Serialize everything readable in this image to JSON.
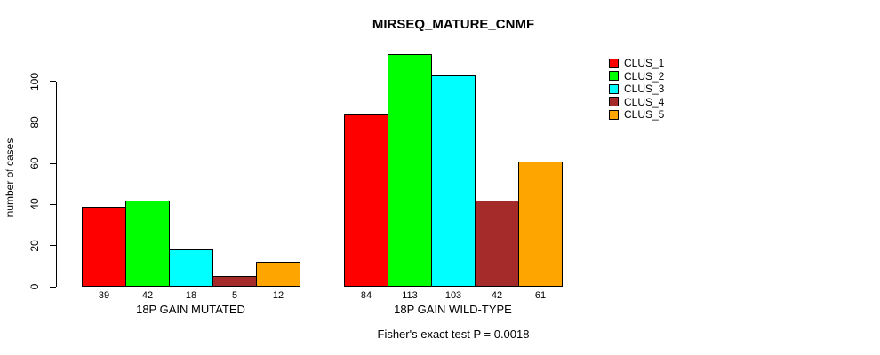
{
  "chart_data": {
    "type": "bar",
    "title": "MIRSEQ_MATURE_CNMF",
    "ylabel": "number of cases",
    "xlabel": "",
    "yticks": [
      0,
      20,
      40,
      60,
      80,
      100
    ],
    "ylim": [
      0,
      116
    ],
    "grid": false,
    "legend_position": "right",
    "categories": [
      "18P GAIN MUTATED",
      "18P GAIN WILD-TYPE"
    ],
    "series": [
      {
        "name": "CLUS_1",
        "color": "#ff0000",
        "values": [
          39,
          84
        ]
      },
      {
        "name": "CLUS_2",
        "color": "#00ff00",
        "values": [
          42,
          113
        ]
      },
      {
        "name": "CLUS_3",
        "color": "#00ffff",
        "values": [
          18,
          103
        ]
      },
      {
        "name": "CLUS_4",
        "color": "#a52a2a",
        "values": [
          5,
          42
        ]
      },
      {
        "name": "CLUS_5",
        "color": "#ffa500",
        "values": [
          12,
          61
        ]
      }
    ],
    "bar_value_labels": [
      [
        39,
        42,
        18,
        5,
        12
      ],
      [
        84,
        113,
        103,
        42,
        61
      ]
    ],
    "footnote": "Fisher's exact test P = 0.0018",
    "background_color": "#ffffff",
    "axis_color": "#000000"
  }
}
